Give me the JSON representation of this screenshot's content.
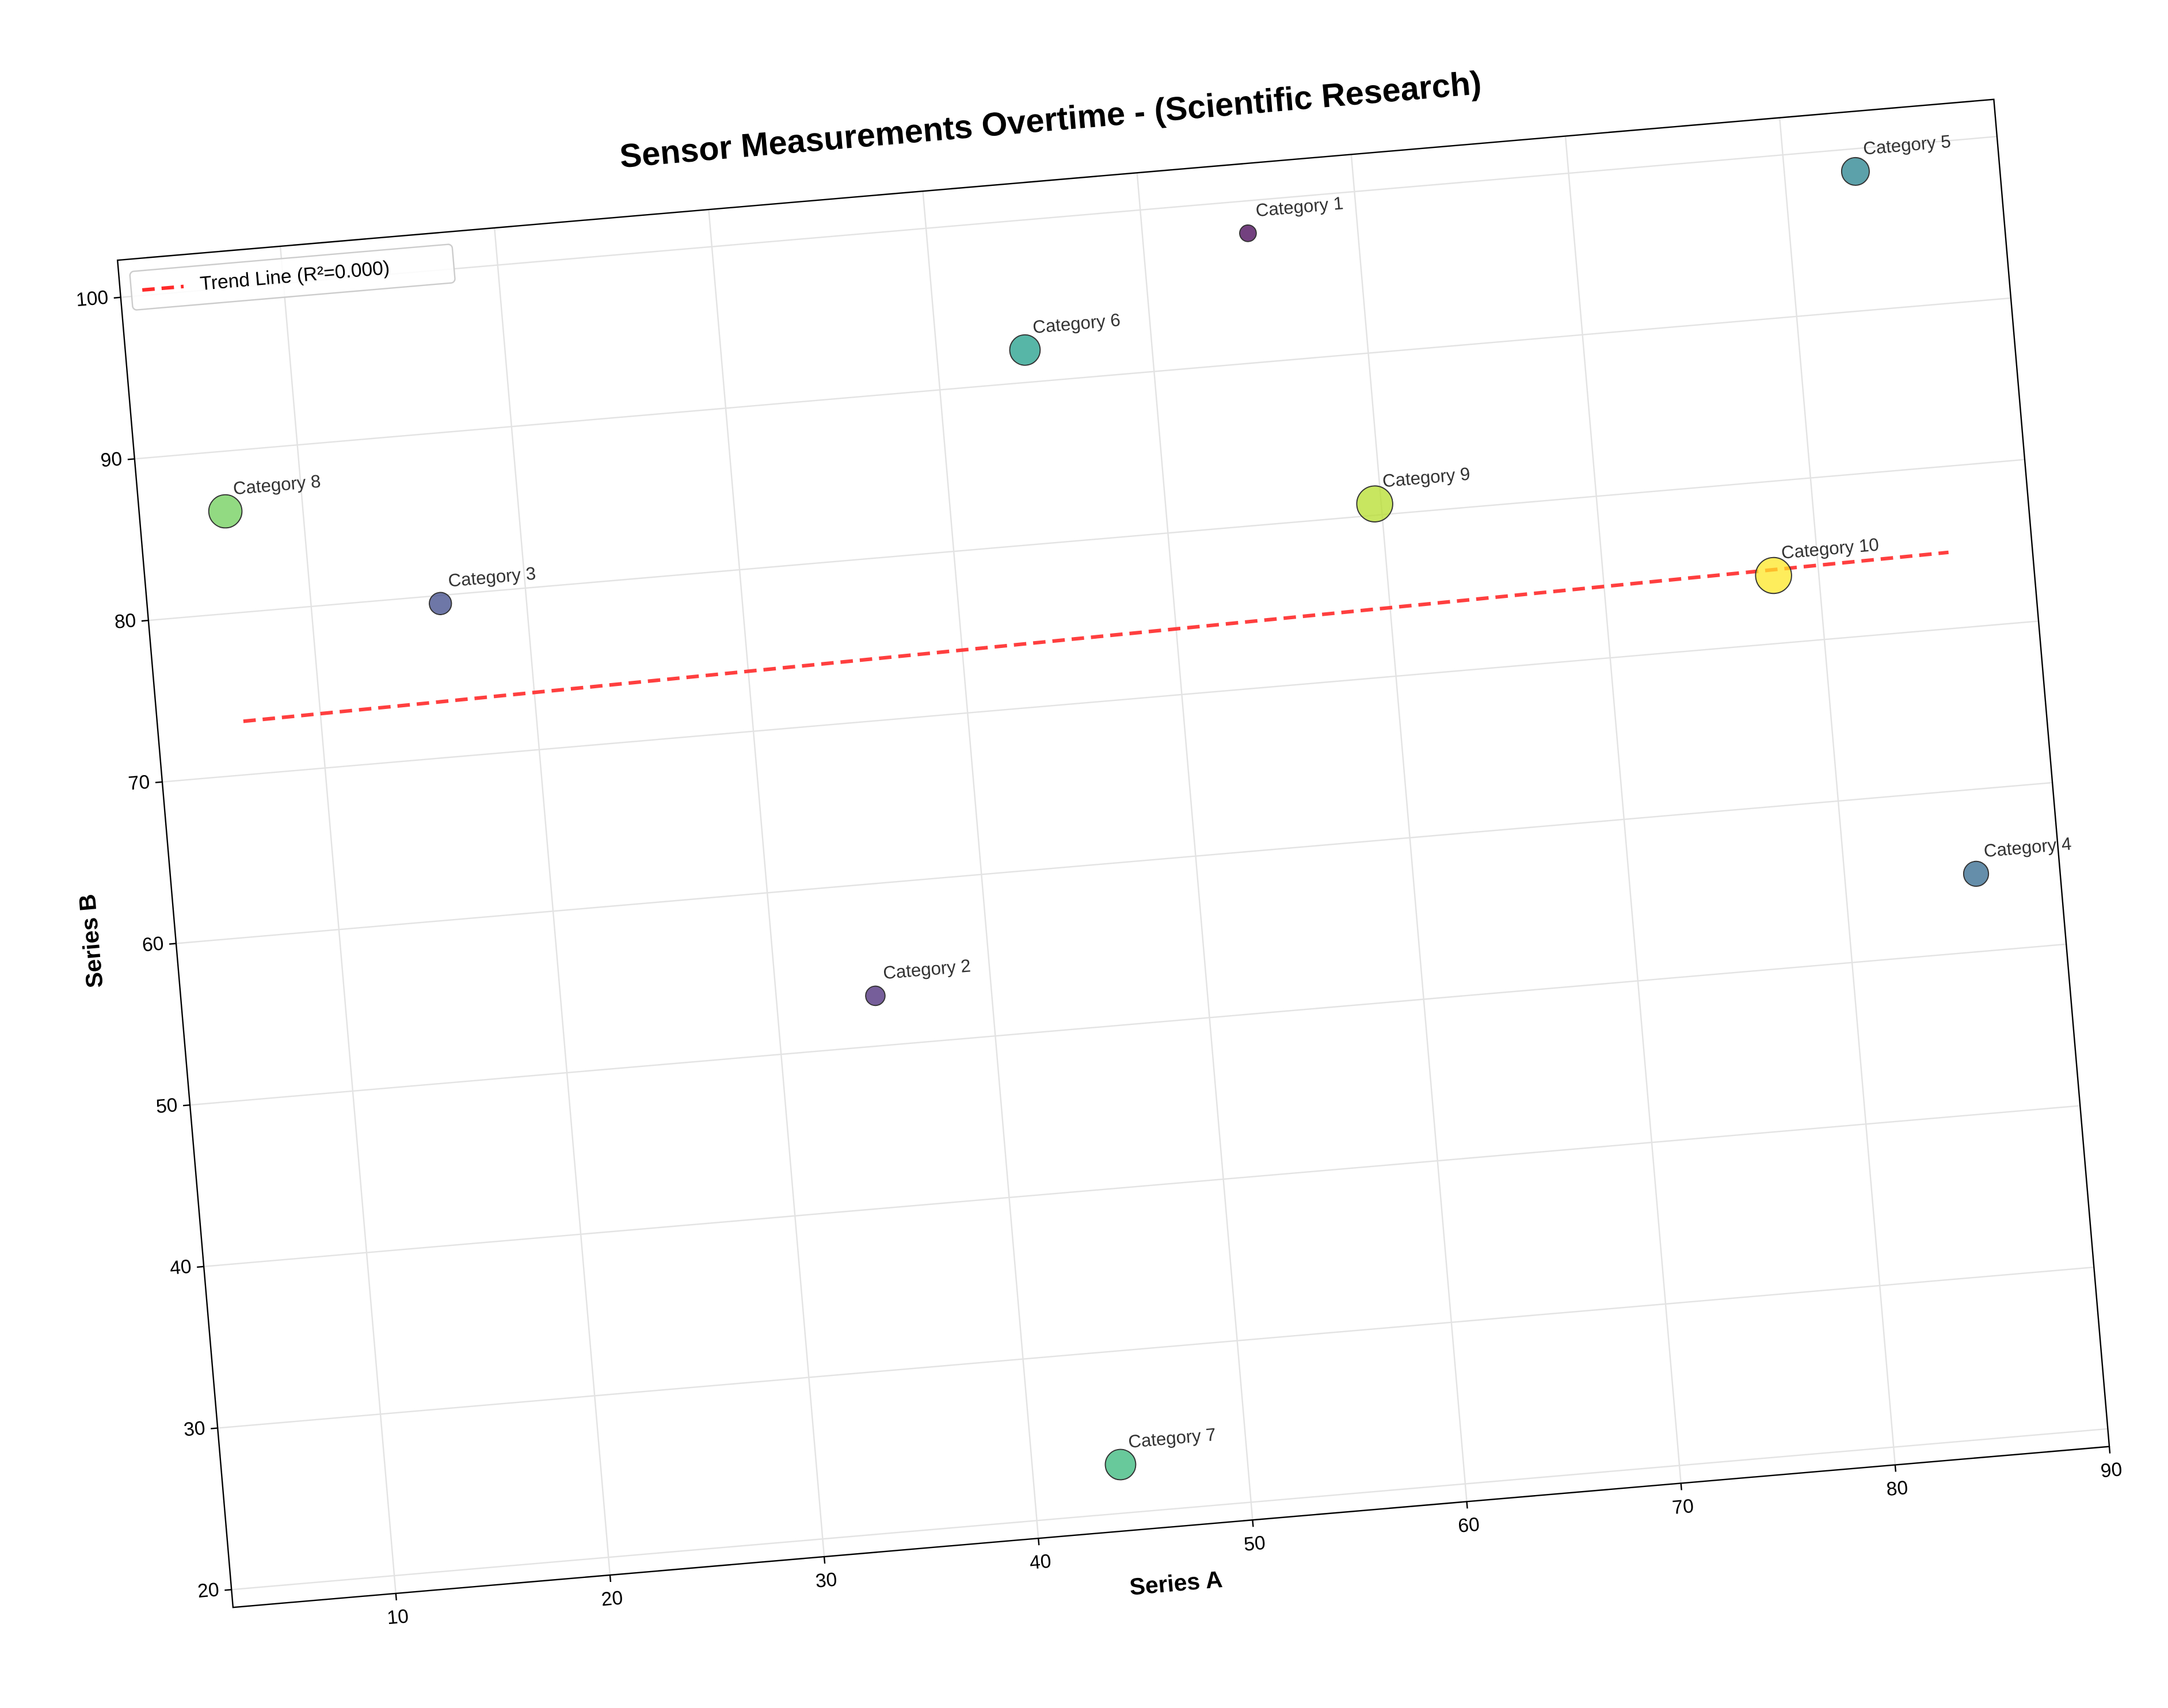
{
  "chart_data": {
    "type": "scatter",
    "title": "Sensor Measurements Overtime - (Scientific Research)",
    "x_label": "Series A",
    "y_label": "Series B",
    "x": [
      54.9,
      34.6,
      16.0,
      86.1,
      83.3,
      44.1,
      44.1,
      6.4,
      59.7,
      77.9
    ],
    "values": [
      98.0,
      53.1,
      79.5,
      54.8,
      98.6,
      92.0,
      23.0,
      86.3,
      80.7,
      74.2
    ],
    "sizes": [
      6,
      7,
      8,
      9,
      10,
      11,
      11,
      12,
      13,
      13
    ],
    "labels": [
      "Category 1",
      "Category 2",
      "Category 3",
      "Category 4",
      "Category 5",
      "Category 6",
      "Category 7",
      "Category 8",
      "Category 9",
      "Category 10"
    ],
    "colors": [
      "#440154",
      "#482878",
      "#3e4989",
      "#31688e",
      "#26828e",
      "#1f9e89",
      "#35b779",
      "#6ece58",
      "#b5de2b",
      "#fde725"
    ],
    "trend_line": {
      "name": "Trend Line (R²=0.000)",
      "color": "#ff2a2a",
      "x": [
        6.4,
        86.1
      ],
      "values": [
        73.3,
        74.7
      ]
    },
    "xlim": [
      2.4,
      90
    ],
    "ylim": [
      18.9,
      102.3
    ],
    "xticks": [
      10,
      20,
      30,
      40,
      50,
      60,
      70,
      80,
      90
    ],
    "yticks": [
      20,
      30,
      40,
      50,
      60,
      70,
      80,
      90,
      100
    ],
    "grid": true,
    "legend": "upper left",
    "rotation": -4.9
  }
}
